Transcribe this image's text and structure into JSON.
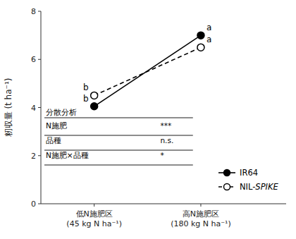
{
  "chart_data": {
    "type": "line",
    "categories": [
      "低N施肥区\n(45 kg N ha⁻¹)",
      "高N施肥区\n(180 kg N ha⁻¹)"
    ],
    "ylabel": "籾収量 (t ha⁻¹)",
    "ylim": [
      0,
      8
    ],
    "yticks": [
      0,
      2,
      4,
      6,
      8
    ],
    "grid": false,
    "legend": "lower right",
    "series": [
      {
        "name": "IR64",
        "color": "#000000",
        "line_style": "solid",
        "marker": "filled-circle",
        "values": [
          4.05,
          7.0
        ],
        "significance": [
          "b",
          "a"
        ]
      },
      {
        "name": "NIL-SPIKE",
        "color": "#000000",
        "line_style": "dashed",
        "marker": "open-circle",
        "values": [
          4.5,
          6.5
        ],
        "significance": [
          "b",
          "a"
        ]
      }
    ],
    "anova": {
      "title": "分散分析",
      "rows": [
        {
          "factor": "N施肥",
          "result": "***"
        },
        {
          "factor": "品種",
          "result": "n.s."
        },
        {
          "factor": "N施肥×品種",
          "result": "*"
        }
      ]
    }
  }
}
